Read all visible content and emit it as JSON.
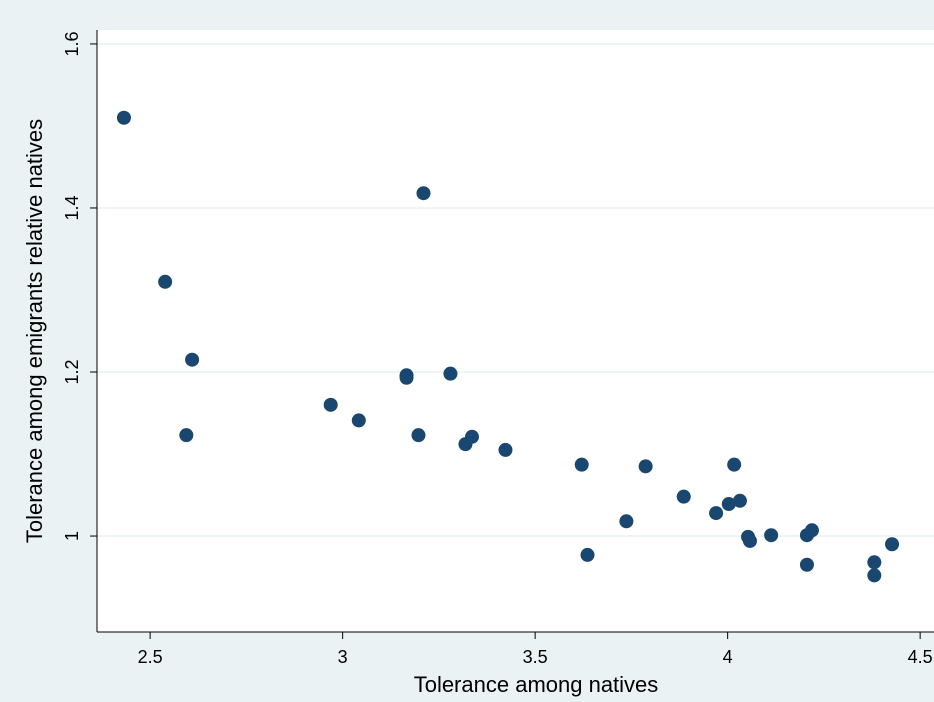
{
  "chart_data": {
    "type": "scatter",
    "x_label": "Tolerance among natives",
    "y_label": "Tolerance among emigrants relative natives",
    "x": [
      2.432,
      2.539,
      2.609,
      2.594,
      2.969,
      3.042,
      3.166,
      3.166,
      3.21,
      3.28,
      3.197,
      3.319,
      3.336,
      3.423,
      3.621,
      3.636,
      3.737,
      3.787,
      3.886,
      3.97,
      4.003,
      4.017,
      4.032,
      4.053,
      4.058,
      4.113,
      4.206,
      4.219,
      4.206,
      4.381,
      4.381,
      4.427
    ],
    "values": [
      1.51,
      1.31,
      1.215,
      1.123,
      1.16,
      1.141,
      1.196,
      1.193,
      1.418,
      1.198,
      1.123,
      1.112,
      1.121,
      1.105,
      1.087,
      0.977,
      1.018,
      1.085,
      1.048,
      1.028,
      1.039,
      1.087,
      1.043,
      0.999,
      0.994,
      1.001,
      1.001,
      1.007,
      0.965,
      0.968,
      0.952,
      0.99
    ],
    "color": "#1a476f",
    "xlim": [
      2.362,
      4.536
    ],
    "ylim": [
      0.883,
      1.617
    ],
    "xticks": [
      2.5,
      3,
      3.5,
      4,
      4.5
    ],
    "yticks": [
      1,
      1.2,
      1.4,
      1.6
    ],
    "grid": true
  }
}
